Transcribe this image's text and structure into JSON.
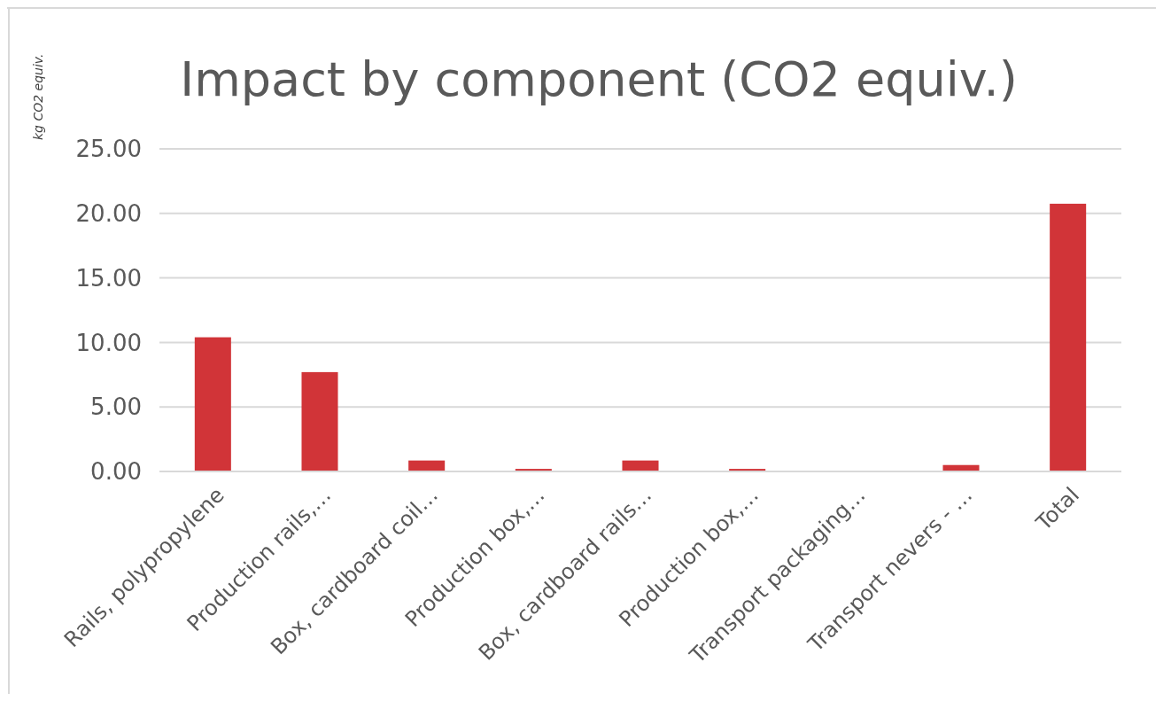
{
  "chart_data": {
    "type": "bar",
    "title": "Impact by component (CO2 equiv.)",
    "ylabel": "kg CO2 equiv.",
    "categories": [
      "Rails, polypropylene",
      "Production rails,…",
      "Box, cardboard coil…",
      "Production box,…",
      "Box, cardboard rails…",
      "Production box,…",
      "Transport packaging…",
      "Transport nevers - …",
      "Total"
    ],
    "values": [
      10.4,
      7.7,
      0.85,
      0.2,
      0.85,
      0.2,
      0,
      0.5,
      20.75
    ],
    "color": "#d13438",
    "ylim": [
      0,
      25
    ],
    "yticks": [
      {
        "value": 0,
        "label": "0.00"
      },
      {
        "value": 5,
        "label": "5.00"
      },
      {
        "value": 10,
        "label": "10.00"
      },
      {
        "value": 15,
        "label": "15.00"
      },
      {
        "value": 20,
        "label": "20.00"
      },
      {
        "value": 25,
        "label": "25.00"
      }
    ],
    "grid": "y"
  }
}
